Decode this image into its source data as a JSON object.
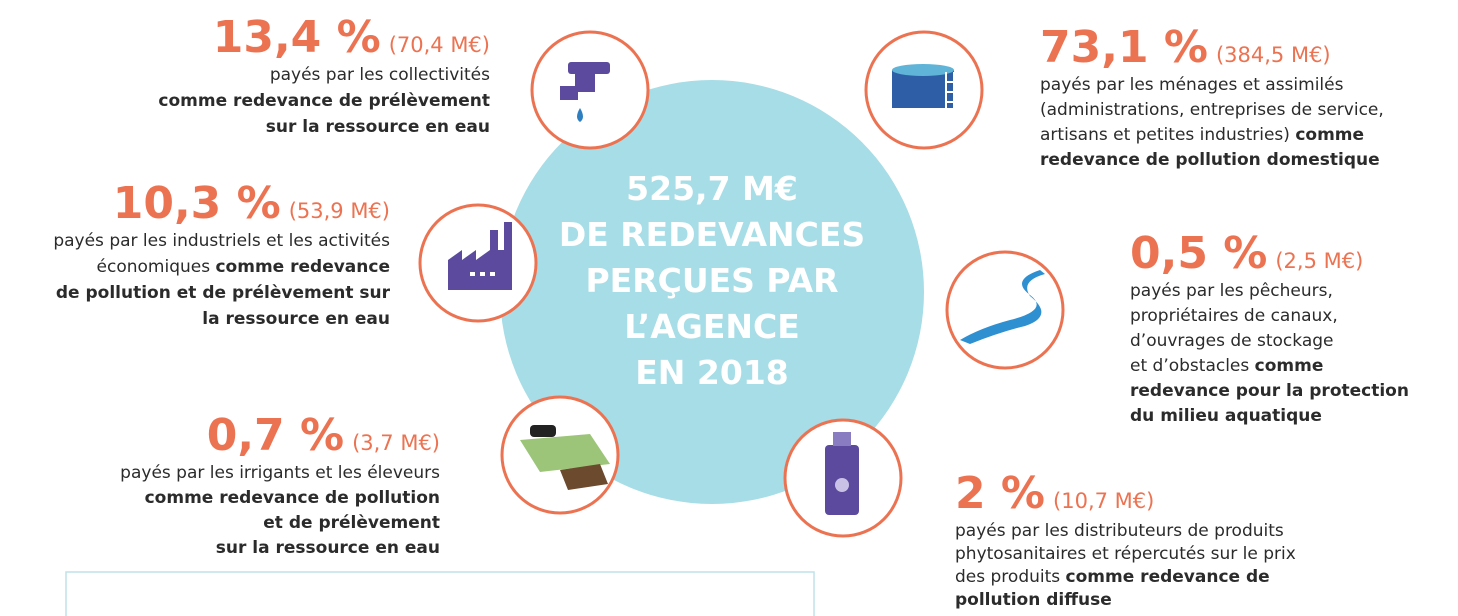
{
  "center": {
    "lines": [
      "525,7 M€",
      "DE REDEVANCES",
      "PERÇUES PAR",
      "L’AGENCE",
      "EN 2018"
    ]
  },
  "items": [
    {
      "percent": "13,4 %",
      "amount": "(70,4 M€)",
      "lines": [
        [
          {
            "text": "payés par les collectivités",
            "bold": false
          }
        ],
        [
          {
            "text": "comme redevance de prélèvement",
            "bold": true
          }
        ],
        [
          {
            "text": "sur la ressource en eau",
            "bold": true
          }
        ]
      ]
    },
    {
      "percent": "10,3 %",
      "amount": "(53,9 M€)",
      "lines": [
        [
          {
            "text": "payés par les industriels et les activités",
            "bold": false
          }
        ],
        [
          {
            "text": "économiques ",
            "bold": false
          },
          {
            "text": "comme redevance",
            "bold": true
          }
        ],
        [
          {
            "text": "de pollution et de prélèvement sur",
            "bold": true
          }
        ],
        [
          {
            "text": "la ressource en eau",
            "bold": true
          }
        ]
      ]
    },
    {
      "percent": "0,7 %",
      "amount": "(3,7 M€)",
      "lines": [
        [
          {
            "text": "payés par les irrigants et les éleveurs",
            "bold": false
          }
        ],
        [
          {
            "text": "comme redevance de pollution",
            "bold": true
          }
        ],
        [
          {
            "text": "et de prélèvement",
            "bold": true
          }
        ],
        [
          {
            "text": "sur la ressource en eau",
            "bold": true
          }
        ]
      ]
    },
    {
      "percent": "73,1 %",
      "amount": "(384,5 M€)",
      "lines": [
        [
          {
            "text": "payés par les ménages et assimilés",
            "bold": false
          }
        ],
        [
          {
            "text": "(administrations, entreprises de service,",
            "bold": false
          }
        ],
        [
          {
            "text": "artisans et petites industries) ",
            "bold": false
          },
          {
            "text": "comme",
            "bold": true
          }
        ],
        [
          {
            "text": "redevance de pollution domestique",
            "bold": true
          }
        ]
      ]
    },
    {
      "percent": "0,5 %",
      "amount": "(2,5 M€)",
      "lines": [
        [
          {
            "text": "payés par les pêcheurs,",
            "bold": false
          }
        ],
        [
          {
            "text": "propriétaires de canaux,",
            "bold": false
          }
        ],
        [
          {
            "text": "d’ouvrages de stockage",
            "bold": false
          }
        ],
        [
          {
            "text": "et d’obstacles ",
            "bold": false
          },
          {
            "text": "comme",
            "bold": true
          }
        ],
        [
          {
            "text": "redevance pour la protection",
            "bold": true
          }
        ],
        [
          {
            "text": "du milieu aquatique",
            "bold": true
          }
        ]
      ]
    },
    {
      "percent": "2 %",
      "amount": "(10,7 M€)",
      "lines": [
        [
          {
            "text": "payés par les distributeurs de produits",
            "bold": false
          }
        ],
        [
          {
            "text": "phytosanitaires et répercutés sur le prix",
            "bold": false
          }
        ],
        [
          {
            "text": "des produits ",
            "bold": false
          },
          {
            "text": "comme redevance de",
            "bold": true
          }
        ],
        [
          {
            "text": "pollution diffuse",
            "bold": true
          }
        ]
      ]
    }
  ]
}
